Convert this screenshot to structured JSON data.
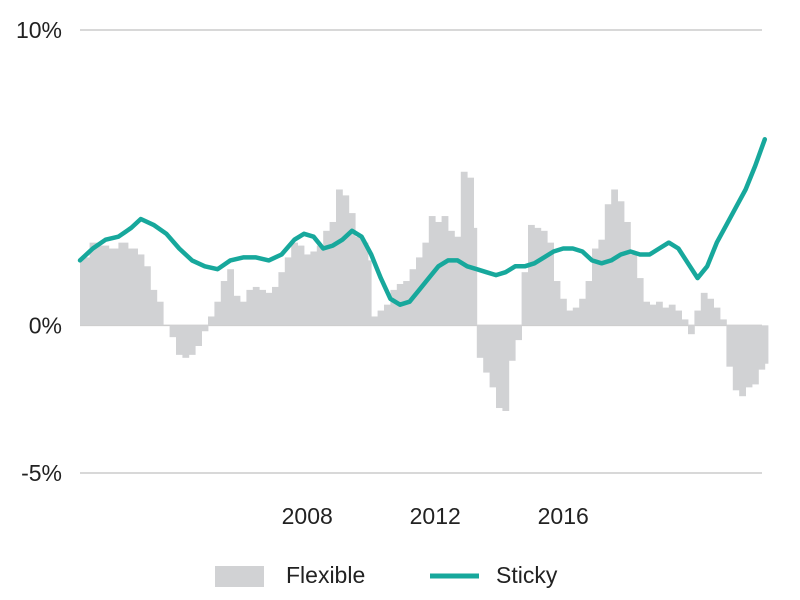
{
  "chart_data": {
    "type": "bar+line",
    "y_axis": {
      "ticks": [
        {
          "value": 10,
          "label": "10%"
        },
        {
          "value": 0,
          "label": "0%"
        },
        {
          "value": -5,
          "label": "-5%"
        }
      ],
      "ylim": [
        -5,
        10
      ],
      "grid": true
    },
    "x_axis": {
      "xlim": [
        2000.9,
        2022.4
      ],
      "ticks": [
        {
          "value": 2008,
          "label": "2008"
        },
        {
          "value": 2012,
          "label": "2012"
        },
        {
          "value": 2016,
          "label": "2016"
        }
      ]
    },
    "legend": {
      "placement": "bottom-center",
      "items": [
        {
          "label": "Flexible",
          "kind": "bar",
          "color": "#d1d2d4"
        },
        {
          "label": "Sticky",
          "kind": "line",
          "color": "#17a89c"
        }
      ]
    },
    "colors": {
      "flexible": "#d1d2d4",
      "sticky": "#17a89c",
      "grid": "#cccccc",
      "text": "#222222"
    },
    "series": [
      {
        "name": "Flexible",
        "kind": "bar",
        "points": [
          [
            2000.9,
            2.3
          ],
          [
            2001.2,
            2.8
          ],
          [
            2001.5,
            2.7
          ],
          [
            2001.8,
            2.6
          ],
          [
            2002.1,
            2.8
          ],
          [
            2002.4,
            2.6
          ],
          [
            2002.7,
            2.4
          ],
          [
            2002.9,
            2.0
          ],
          [
            2003.1,
            1.2
          ],
          [
            2003.3,
            0.8
          ],
          [
            2003.5,
            0.0
          ],
          [
            2003.7,
            -0.4
          ],
          [
            2003.9,
            -1.0
          ],
          [
            2004.1,
            -1.1
          ],
          [
            2004.3,
            -1.0
          ],
          [
            2004.5,
            -0.7
          ],
          [
            2004.7,
            -0.2
          ],
          [
            2004.9,
            0.3
          ],
          [
            2005.1,
            0.8
          ],
          [
            2005.3,
            1.5
          ],
          [
            2005.5,
            1.9
          ],
          [
            2005.7,
            1.0
          ],
          [
            2005.9,
            0.8
          ],
          [
            2006.1,
            1.2
          ],
          [
            2006.3,
            1.3
          ],
          [
            2006.5,
            1.2
          ],
          [
            2006.7,
            1.1
          ],
          [
            2006.9,
            1.3
          ],
          [
            2007.1,
            1.8
          ],
          [
            2007.3,
            2.3
          ],
          [
            2007.5,
            2.8
          ],
          [
            2007.7,
            2.7
          ],
          [
            2007.9,
            2.4
          ],
          [
            2008.1,
            2.5
          ],
          [
            2008.3,
            2.7
          ],
          [
            2008.5,
            3.2
          ],
          [
            2008.7,
            3.5
          ],
          [
            2008.9,
            4.6
          ],
          [
            2009.1,
            4.4
          ],
          [
            2009.3,
            3.8
          ],
          [
            2009.5,
            3.0
          ],
          [
            2009.7,
            2.8
          ],
          [
            2009.9,
            2.2
          ],
          [
            2010.0,
            0.3
          ],
          [
            2010.2,
            0.5
          ],
          [
            2010.4,
            0.7
          ],
          [
            2010.6,
            1.2
          ],
          [
            2010.8,
            1.4
          ],
          [
            2011.0,
            1.5
          ],
          [
            2011.2,
            1.9
          ],
          [
            2011.4,
            2.3
          ],
          [
            2011.6,
            2.8
          ],
          [
            2011.8,
            3.7
          ],
          [
            2012.0,
            3.5
          ],
          [
            2012.2,
            3.7
          ],
          [
            2012.4,
            3.2
          ],
          [
            2012.6,
            3.0
          ],
          [
            2012.8,
            5.2
          ],
          [
            2013.0,
            5.0
          ],
          [
            2013.2,
            3.3
          ],
          [
            2013.3,
            -1.1
          ],
          [
            2013.5,
            -1.6
          ],
          [
            2013.7,
            -2.1
          ],
          [
            2013.9,
            -2.8
          ],
          [
            2014.1,
            -2.9
          ],
          [
            2014.3,
            -1.2
          ],
          [
            2014.5,
            -0.5
          ],
          [
            2014.7,
            1.8
          ],
          [
            2014.9,
            3.4
          ],
          [
            2015.1,
            3.3
          ],
          [
            2015.3,
            3.2
          ],
          [
            2015.5,
            2.8
          ],
          [
            2015.7,
            1.5
          ],
          [
            2015.9,
            0.9
          ],
          [
            2016.1,
            0.5
          ],
          [
            2016.3,
            0.6
          ],
          [
            2016.5,
            0.9
          ],
          [
            2016.7,
            1.5
          ],
          [
            2016.9,
            2.6
          ],
          [
            2017.1,
            2.9
          ],
          [
            2017.3,
            4.1
          ],
          [
            2017.5,
            4.6
          ],
          [
            2017.7,
            4.2
          ],
          [
            2017.9,
            3.5
          ],
          [
            2018.1,
            2.4
          ],
          [
            2018.3,
            1.6
          ],
          [
            2018.5,
            0.8
          ],
          [
            2018.7,
            0.7
          ],
          [
            2018.9,
            0.8
          ],
          [
            2019.1,
            0.6
          ],
          [
            2019.3,
            0.7
          ],
          [
            2019.5,
            0.5
          ],
          [
            2019.7,
            0.2
          ],
          [
            2019.9,
            -0.3
          ],
          [
            2020.1,
            0.5
          ],
          [
            2020.3,
            1.1
          ],
          [
            2020.5,
            0.9
          ],
          [
            2020.7,
            0.6
          ],
          [
            2020.9,
            0.2
          ],
          [
            2021.1,
            -1.4
          ],
          [
            2021.3,
            -2.2
          ],
          [
            2021.5,
            -2.4
          ],
          [
            2021.7,
            -2.1
          ],
          [
            2021.9,
            -2.0
          ],
          [
            2022.1,
            -1.5
          ],
          [
            2022.3,
            -1.3
          ]
        ]
      },
      {
        "name": "Sticky",
        "kind": "line",
        "points": [
          [
            2000.9,
            2.2
          ],
          [
            2001.3,
            2.6
          ],
          [
            2001.7,
            2.9
          ],
          [
            2002.1,
            3.0
          ],
          [
            2002.5,
            3.3
          ],
          [
            2002.8,
            3.6
          ],
          [
            2003.2,
            3.4
          ],
          [
            2003.6,
            3.1
          ],
          [
            2004.0,
            2.6
          ],
          [
            2004.4,
            2.2
          ],
          [
            2004.8,
            2.0
          ],
          [
            2005.2,
            1.9
          ],
          [
            2005.6,
            2.2
          ],
          [
            2006.0,
            2.3
          ],
          [
            2006.4,
            2.3
          ],
          [
            2006.8,
            2.2
          ],
          [
            2007.2,
            2.4
          ],
          [
            2007.6,
            2.9
          ],
          [
            2007.9,
            3.1
          ],
          [
            2008.2,
            3.0
          ],
          [
            2008.5,
            2.6
          ],
          [
            2008.8,
            2.7
          ],
          [
            2009.1,
            2.9
          ],
          [
            2009.4,
            3.2
          ],
          [
            2009.7,
            3.0
          ],
          [
            2010.0,
            2.4
          ],
          [
            2010.3,
            1.6
          ],
          [
            2010.6,
            0.9
          ],
          [
            2010.9,
            0.7
          ],
          [
            2011.2,
            0.8
          ],
          [
            2011.5,
            1.2
          ],
          [
            2011.8,
            1.6
          ],
          [
            2012.1,
            2.0
          ],
          [
            2012.4,
            2.2
          ],
          [
            2012.7,
            2.2
          ],
          [
            2013.0,
            2.0
          ],
          [
            2013.3,
            1.9
          ],
          [
            2013.6,
            1.8
          ],
          [
            2013.9,
            1.7
          ],
          [
            2014.2,
            1.8
          ],
          [
            2014.5,
            2.0
          ],
          [
            2014.8,
            2.0
          ],
          [
            2015.1,
            2.1
          ],
          [
            2015.4,
            2.3
          ],
          [
            2015.7,
            2.5
          ],
          [
            2016.0,
            2.6
          ],
          [
            2016.3,
            2.6
          ],
          [
            2016.6,
            2.5
          ],
          [
            2016.9,
            2.2
          ],
          [
            2017.2,
            2.1
          ],
          [
            2017.5,
            2.2
          ],
          [
            2017.8,
            2.4
          ],
          [
            2018.1,
            2.5
          ],
          [
            2018.4,
            2.4
          ],
          [
            2018.7,
            2.4
          ],
          [
            2019.0,
            2.6
          ],
          [
            2019.3,
            2.8
          ],
          [
            2019.6,
            2.6
          ],
          [
            2019.9,
            2.1
          ],
          [
            2020.2,
            1.6
          ],
          [
            2020.5,
            2.0
          ],
          [
            2020.8,
            2.8
          ],
          [
            2021.1,
            3.4
          ],
          [
            2021.4,
            4.0
          ],
          [
            2021.7,
            4.6
          ],
          [
            2022.0,
            5.4
          ],
          [
            2022.3,
            6.3
          ]
        ]
      }
    ]
  }
}
